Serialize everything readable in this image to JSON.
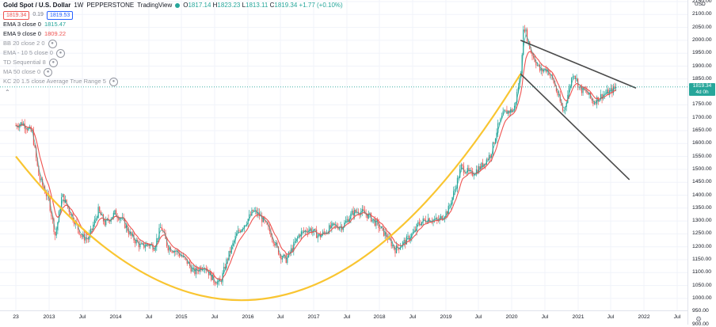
{
  "header": {
    "symbol": "Gold Spot / U.S. Dollar",
    "interval": "1W",
    "broker": "PEPPERSTONE",
    "platform": "TradingView",
    "ohlc": {
      "o_label": "O",
      "o": "1817.14",
      "h_label": "H",
      "h": "1823.23",
      "l_label": "L",
      "l": "1813.11",
      "c_label": "C",
      "c": "1819.34",
      "change": "+1.77 (+0.10%)"
    },
    "sell_price": "1819.34",
    "spread": "0.19",
    "buy_price": "1819.53"
  },
  "indicators": [
    {
      "label": "EMA 3 close 0",
      "value": "1815.47",
      "color": "#26a69a",
      "hidden": false
    },
    {
      "label": "EMA 9 close 0",
      "value": "1809.22",
      "color": "#ef5350",
      "hidden": false
    },
    {
      "label": "BB 20 close 2 0",
      "value": "",
      "hidden": true
    },
    {
      "label": "EMA - 10 5 close 0",
      "value": "",
      "hidden": true
    },
    {
      "label": "TD Sequential 8",
      "value": "",
      "hidden": true
    },
    {
      "label": "MA 50 close 0",
      "value": "",
      "hidden": true
    },
    {
      "label": "KC 20 1.5 close Average True Range 5",
      "value": "",
      "hidden": true
    }
  ],
  "collapse_icon": "chevron-up-icon",
  "price_axis": {
    "currency": "USD",
    "ticks": [
      "2150.00",
      "2100.00",
      "2050.00",
      "2000.00",
      "1950.00",
      "1900.00",
      "1850.00",
      "1750.00",
      "1700.00",
      "1650.00",
      "1600.00",
      "1550.00",
      "1500.00",
      "1450.00",
      "1400.00",
      "1350.00",
      "1300.00",
      "1250.00",
      "1200.00",
      "1150.00",
      "1100.00",
      "1050.00",
      "1000.00",
      "950.00",
      "900.00"
    ],
    "current_price": "1819.34",
    "current_sub": "4d 0h"
  },
  "time_axis": {
    "ticks": [
      "23",
      "2013",
      "Jul",
      "2014",
      "Jul",
      "2015",
      "Jul",
      "2016",
      "Jul",
      "2017",
      "Jul",
      "2018",
      "Jul",
      "2019",
      "Jul",
      "2020",
      "Jul",
      "2021",
      "Jul",
      "2022",
      "Jul"
    ]
  },
  "colors": {
    "up": "#26a69a",
    "down": "#ef5350",
    "ema3": "#26a69a",
    "ema9": "#ef5350",
    "arc": "#f9c531",
    "trendline": "#4a4a4a",
    "price_line": "#26a69a"
  },
  "chart_data": {
    "type": "line",
    "title": "Gold Spot / U.S. Dollar",
    "interval": "1W",
    "xlabel": "",
    "ylabel": "",
    "ylim": [
      900,
      2150
    ],
    "x": [
      "2012.90",
      "2013.00",
      "2013.15",
      "2013.25",
      "2013.40",
      "2013.50",
      "2013.60",
      "2013.75",
      "2013.90",
      "2014.00",
      "2014.15",
      "2014.25",
      "2014.40",
      "2014.50",
      "2014.65",
      "2014.80",
      "2014.90",
      "2015.00",
      "2015.10",
      "2015.20",
      "2015.35",
      "2015.50",
      "2015.60",
      "2015.75",
      "2015.90",
      "2016.00",
      "2016.10",
      "2016.25",
      "2016.40",
      "2016.50",
      "2016.60",
      "2016.75",
      "2016.90",
      "2017.00",
      "2017.20",
      "2017.35",
      "2017.50",
      "2017.70",
      "2017.85",
      "2018.00",
      "2018.10",
      "2018.25",
      "2018.40",
      "2018.55",
      "2018.65",
      "2018.80",
      "2018.95",
      "2019.00",
      "2019.15",
      "2019.30",
      "2019.45",
      "2019.55",
      "2019.65",
      "2019.80",
      "2019.95",
      "2020.10",
      "2020.20",
      "2020.30",
      "2020.45",
      "2020.55",
      "2020.60",
      "2020.70",
      "2020.85",
      "2020.95",
      "2021.05",
      "2021.20",
      "2021.35",
      "2021.45",
      "2021.55",
      "2021.65",
      "2021.80",
      "2021.90",
      "2022.00"
    ],
    "series": [
      {
        "name": "Gold Spot / U.S. Dollar",
        "values": [
          1670,
          1680,
          1640,
          1470,
          1380,
          1240,
          1400,
          1320,
          1240,
          1230,
          1340,
          1290,
          1330,
          1310,
          1240,
          1200,
          1210,
          1200,
          1280,
          1200,
          1180,
          1140,
          1100,
          1130,
          1070,
          1060,
          1150,
          1250,
          1300,
          1340,
          1320,
          1260,
          1170,
          1150,
          1250,
          1270,
          1240,
          1280,
          1280,
          1330,
          1340,
          1320,
          1280,
          1230,
          1190,
          1220,
          1260,
          1290,
          1310,
          1300,
          1340,
          1420,
          1510,
          1480,
          1510,
          1560,
          1660,
          1720,
          1730,
          1870,
          2060,
          1960,
          1880,
          1890,
          1840,
          1720,
          1880,
          1810,
          1800,
          1760,
          1790,
          1800,
          1819
        ]
      }
    ],
    "annotations": [
      {
        "type": "arc",
        "color": "#f9c531",
        "points": [
          [
            "2012.90",
            1550
          ],
          [
            "2016.75",
            1002
          ],
          [
            "2020.55",
            1870
          ]
        ]
      },
      {
        "type": "trendline",
        "from": [
          "2020.55",
          2000
        ],
        "to": [
          "2022.30",
          1815
        ]
      },
      {
        "type": "trendline",
        "from": [
          "2020.55",
          1870
        ],
        "to": [
          "2022.20",
          1460
        ]
      }
    ],
    "last_price": 1819.34,
    "grid": true,
    "legend": "top-left"
  }
}
